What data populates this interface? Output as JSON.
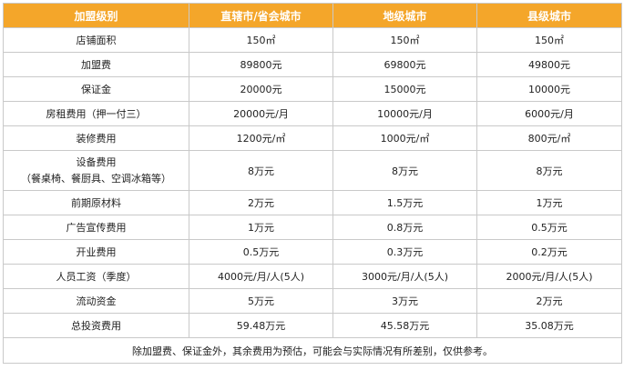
{
  "table": {
    "headers": [
      "加盟级别",
      "直辖市/省会城市",
      "地级城市",
      "县级城市"
    ],
    "rows": [
      {
        "label": "店铺面积",
        "values": [
          "150㎡",
          "150㎡",
          "150㎡"
        ]
      },
      {
        "label": "加盟费",
        "values": [
          "89800元",
          "69800元",
          "49800元"
        ]
      },
      {
        "label": "保证金",
        "values": [
          "20000元",
          "15000元",
          "10000元"
        ]
      },
      {
        "label": "房租费用（押一付三）",
        "values": [
          "20000元/月",
          "10000元/月",
          "6000元/月"
        ]
      },
      {
        "label": "装修费用",
        "values": [
          "1200元/㎡",
          "1000元/㎡",
          "800元/㎡"
        ]
      },
      {
        "label_line1": "设备费用",
        "label_line2": "（餐桌椅、餐厨具、空调冰箱等）",
        "values": [
          "8万元",
          "8万元",
          "8万元"
        ]
      },
      {
        "label": "前期原材料",
        "values": [
          "2万元",
          "1.5万元",
          "1万元"
        ]
      },
      {
        "label": "广告宣传费用",
        "values": [
          "1万元",
          "0.8万元",
          "0.5万元"
        ]
      },
      {
        "label": "开业费用",
        "values": [
          "0.5万元",
          "0.3万元",
          "0.2万元"
        ]
      },
      {
        "label": "人员工资（季度）",
        "values": [
          "4000元/月/人(5人)",
          "3000元/月/人(5人)",
          "2000元/月/人(5人)"
        ]
      },
      {
        "label": "流动资金",
        "values": [
          "5万元",
          "3万元",
          "2万元"
        ]
      },
      {
        "label": "总投资费用",
        "values": [
          "59.48万元",
          "45.58万元",
          "35.08万元"
        ]
      }
    ],
    "footnote": "除加盟费、保证金外，其余费用为预估，可能会与实际情况有所差别，仅供参考。"
  },
  "colors": {
    "header_bg": "#f4a62a",
    "header_text": "#ffffff",
    "border": "#c9c9c9"
  }
}
